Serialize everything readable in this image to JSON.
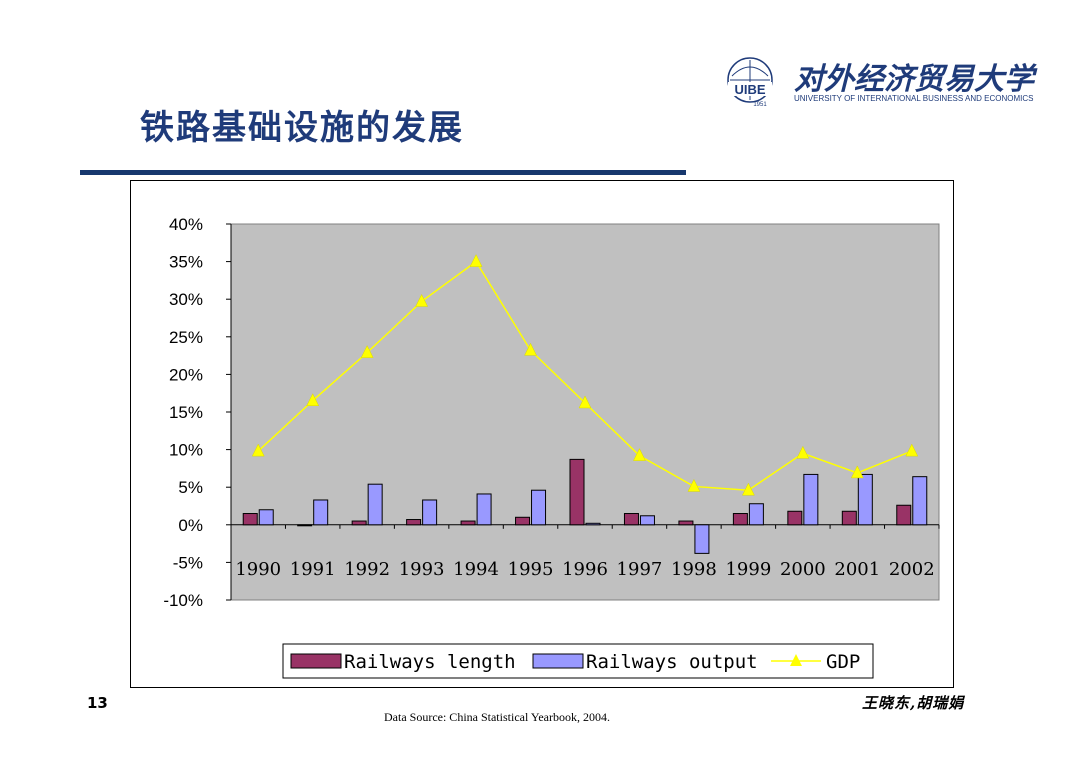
{
  "slide": {
    "title": "铁路基础设施的发展",
    "page_number": "13",
    "source": "Data Source: China Statistical Yearbook, 2004.",
    "author": "王晓东,胡瑞娟"
  },
  "logo": {
    "name": "对外经济贸易大学",
    "subtitle": "UNIVERSITY OF INTERNATIONAL BUSINESS AND ECONOMICS",
    "emblem_text": "UIBE",
    "year": "1951",
    "color": "#1f3b7a"
  },
  "chart_data": {
    "type": "bar",
    "categories": [
      "1990",
      "1991",
      "1992",
      "1993",
      "1994",
      "1995",
      "1996",
      "1997",
      "1998",
      "1999",
      "2000",
      "2001",
      "2002"
    ],
    "series": [
      {
        "name": "Railways length",
        "type": "bar",
        "color": "#993366",
        "values": [
          1.5,
          0.0,
          0.5,
          0.7,
          0.5,
          1.0,
          8.7,
          1.5,
          0.5,
          1.5,
          1.8,
          1.8,
          2.6
        ]
      },
      {
        "name": "Railways output",
        "type": "bar",
        "color": "#9999ff",
        "values": [
          2.0,
          3.3,
          5.4,
          3.3,
          4.1,
          4.6,
          0.2,
          1.2,
          -3.8,
          2.8,
          6.7,
          6.7,
          6.4
        ]
      },
      {
        "name": "GDP",
        "type": "line",
        "color": "#ffff00",
        "values": [
          9.8,
          16.5,
          22.9,
          29.7,
          35.0,
          23.2,
          16.2,
          9.2,
          5.1,
          4.6,
          9.5,
          6.9,
          9.8
        ]
      }
    ],
    "ylim": [
      -10,
      40
    ],
    "yticks": [
      "40%",
      "35%",
      "30%",
      "25%",
      "20%",
      "15%",
      "10%",
      "5%",
      "0%",
      "-5%",
      "-10%"
    ],
    "plot_background": "#c0c0c0",
    "legend_position": "bottom",
    "grid": false
  }
}
